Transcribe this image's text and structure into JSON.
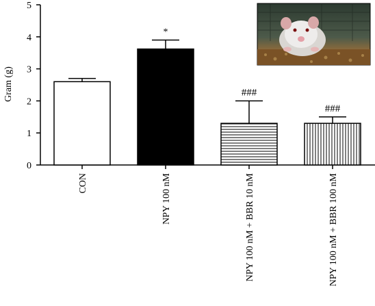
{
  "chart_data": {
    "type": "bar",
    "categories": [
      "CON",
      "NPY 100 nM",
      "NPY 100 nM + BBR 10 nM",
      "NPY 100 nM + BBR 100 nM"
    ],
    "values": [
      2.6,
      3.62,
      1.3,
      1.3
    ],
    "errors": [
      0.1,
      0.28,
      0.7,
      0.2
    ],
    "annotations": [
      "",
      "*",
      "###",
      "###"
    ],
    "bar_fills": [
      "white",
      "black",
      "horizontal-lines",
      "vertical-lines"
    ],
    "ylabel": "Gram (g)",
    "xlabel": "",
    "title": "",
    "ylim": [
      0,
      5
    ],
    "yticks": [
      0,
      1,
      2,
      3,
      4,
      5
    ],
    "grid": false,
    "legend": "none",
    "inset_photo": "mouse-photo-top-right"
  },
  "colors": {
    "axis": "#000000",
    "bar_dark": "#000000",
    "bar_light": "#ffffff"
  }
}
